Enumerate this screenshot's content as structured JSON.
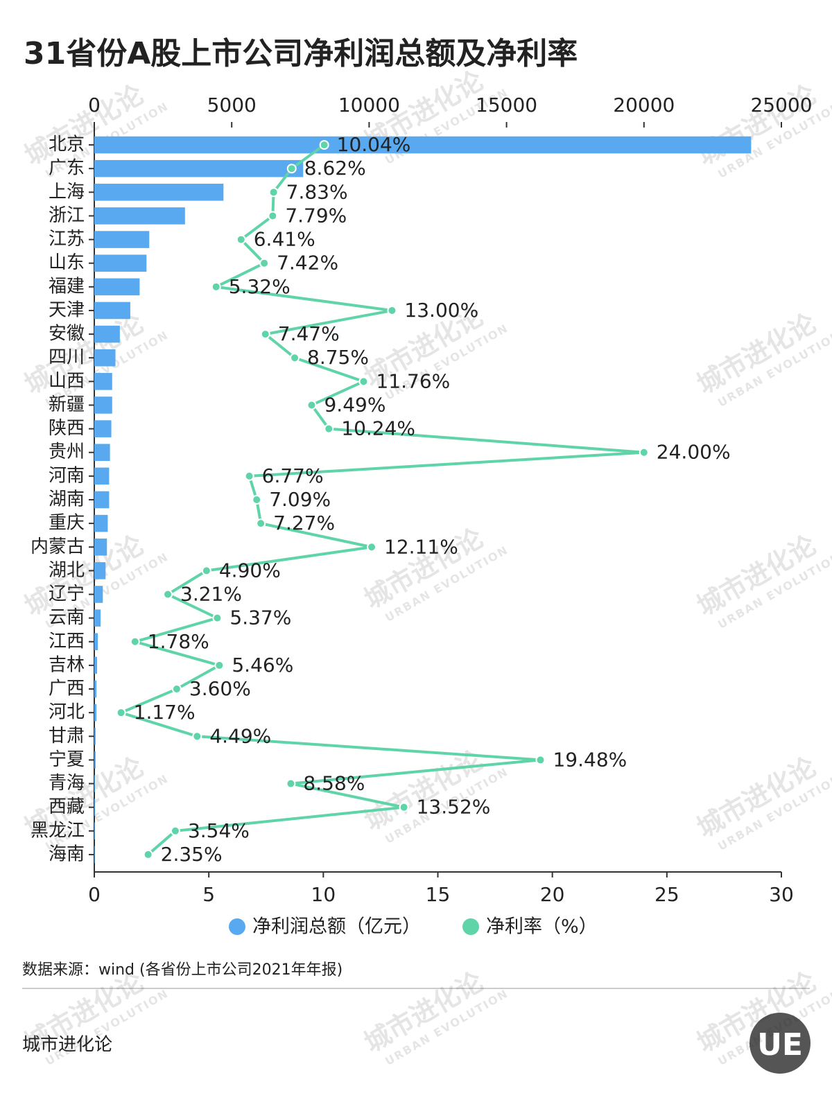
{
  "chart_data": {
    "type": "bar",
    "orientation": "horizontal",
    "title": "31省份A股上市公司净利润总额及净利率",
    "categories": [
      "北京",
      "广东",
      "上海",
      "浙江",
      "江苏",
      "山东",
      "福建",
      "天津",
      "安徽",
      "四川",
      "山西",
      "新疆",
      "陕西",
      "贵州",
      "河南",
      "湖南",
      "重庆",
      "内蒙古",
      "湖北",
      "辽宁",
      "云南",
      "江西",
      "吉林",
      "广西",
      "河北",
      "甘肃",
      "宁夏",
      "青海",
      "西藏",
      "黑龙江",
      "海南"
    ],
    "series": [
      {
        "name": "净利润总额（亿元）",
        "type": "bar",
        "color": "#58a9ef",
        "values": [
          23900,
          7600,
          4700,
          3300,
          2000,
          1900,
          1650,
          1310,
          930,
          770,
          650,
          650,
          620,
          570,
          540,
          540,
          490,
          460,
          410,
          310,
          230,
          130,
          100,
          80,
          80,
          50,
          50,
          30,
          30,
          25,
          20
        ]
      },
      {
        "name": "净利率（%）",
        "type": "line",
        "axis": "x2",
        "color": "#5fd4a8",
        "values": [
          10.04,
          8.62,
          7.83,
          7.79,
          6.41,
          7.42,
          5.32,
          13.0,
          7.47,
          8.75,
          11.76,
          9.49,
          10.24,
          24.0,
          6.77,
          7.09,
          7.27,
          12.11,
          4.9,
          3.21,
          5.37,
          1.78,
          5.46,
          3.6,
          1.17,
          4.49,
          19.48,
          8.58,
          13.52,
          3.54,
          2.35
        ],
        "value_labels": [
          "10.04%",
          "8.62%",
          "7.83%",
          "7.79%",
          "6.41%",
          "7.42%",
          "5.32%",
          "13.00%",
          "7.47%",
          "8.75%",
          "11.76%",
          "9.49%",
          "10.24%",
          "24.00%",
          "6.77%",
          "7.09%",
          "7.27%",
          "12.11%",
          "4.90%",
          "3.21%",
          "5.37%",
          "1.78%",
          "5.46%",
          "3.60%",
          "1.17%",
          "4.49%",
          "19.48%",
          "8.58%",
          "13.52%",
          "3.54%",
          "2.35%"
        ]
      }
    ],
    "xlim": [
      0,
      25000
    ],
    "xticks": [
      0,
      5000,
      10000,
      15000,
      20000,
      25000
    ],
    "x2lim": [
      0,
      30
    ],
    "x2ticks": [
      0,
      5,
      10,
      15,
      20,
      25,
      30
    ],
    "legend": "bottom",
    "source": "数据来源：wind (各省份上市公司2021年年报)",
    "footer": "城市进化论",
    "watermark": {
      "cn": "城市进化论",
      "en": "URBAN EVOLUTION"
    },
    "logo": "UE"
  }
}
